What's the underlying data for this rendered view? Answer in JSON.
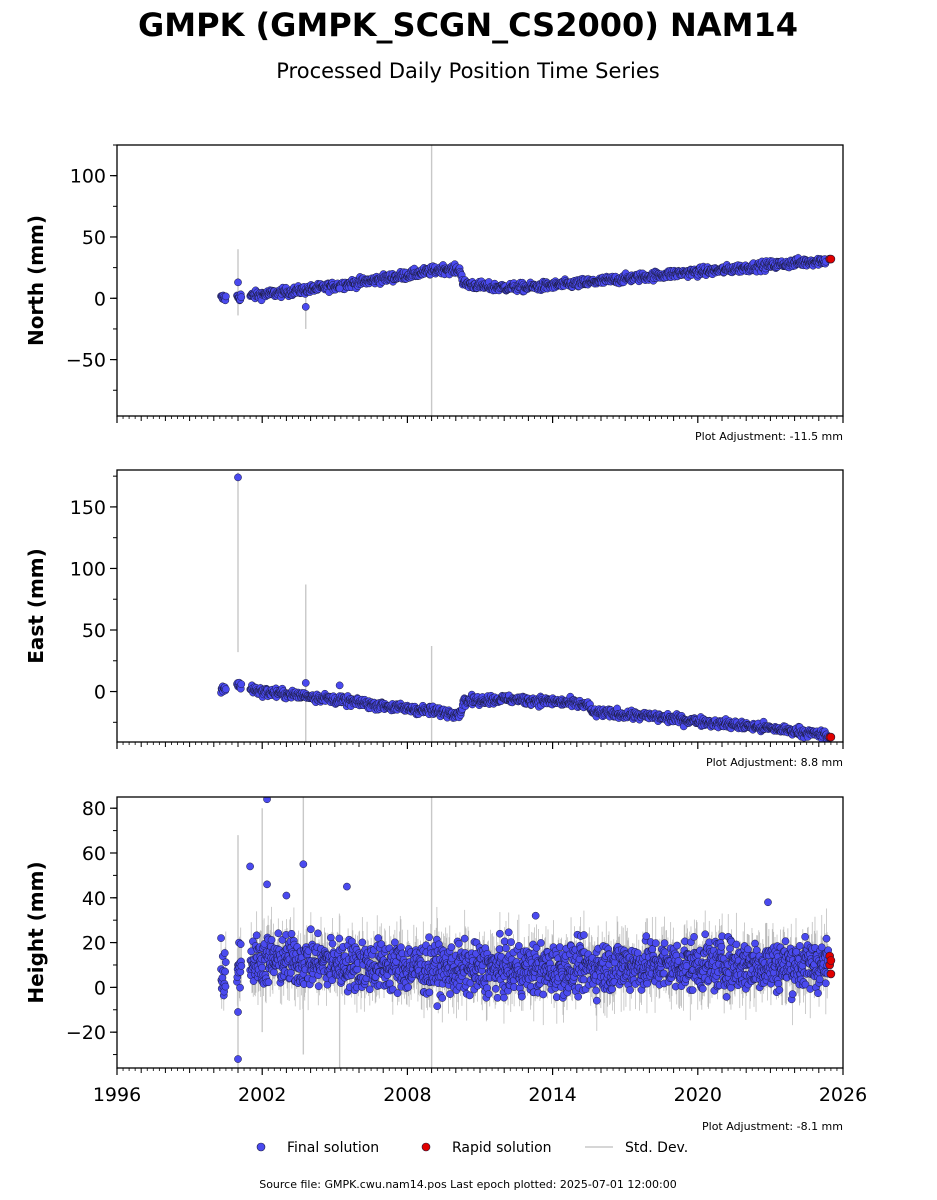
{
  "chart_data": {
    "type": "scatter",
    "title": "GMPK (GMPK_SCGN_CS2000) NAM14",
    "subtitle": "Processed Daily Position Time Series",
    "xlim": [
      1996,
      2026
    ],
    "xticks": [
      "1996",
      "2002",
      "2008",
      "2014",
      "2020",
      "2026"
    ],
    "panels": [
      {
        "ylabel": "North (mm)",
        "ylim": [
          -96,
          125
        ],
        "yticks": [
          "100",
          "50",
          "0",
          "−50"
        ],
        "ytick_values": [
          100,
          50,
          0,
          -50
        ],
        "adjustment": "Plot Adjustment: -11.5 mm",
        "trend": [
          [
            2000.3,
            0
          ],
          [
            2001.0,
            1
          ],
          [
            2003.0,
            5
          ],
          [
            2005.0,
            10
          ],
          [
            2007.0,
            16
          ],
          [
            2008.0,
            19
          ],
          [
            2009.5,
            24
          ],
          [
            2010.2,
            23
          ],
          [
            2010.3,
            12
          ],
          [
            2011.5,
            9
          ],
          [
            2013.0,
            9
          ],
          [
            2015.0,
            12
          ],
          [
            2017.0,
            16
          ],
          [
            2019.0,
            20
          ],
          [
            2021.0,
            23
          ],
          [
            2023.0,
            27
          ],
          [
            2025.3,
            31
          ]
        ],
        "noise": 2.5,
        "outliers": [
          [
            2001.0,
            13
          ],
          [
            2003.8,
            -7
          ],
          [
            2005.2,
            8
          ]
        ],
        "stddev_bars": [
          [
            2001.0,
            -14,
            40
          ],
          [
            2003.8,
            -25,
            11
          ],
          [
            2009.0,
            -96,
            125
          ]
        ],
        "rapid": [
          [
            2025.45,
            32
          ],
          [
            2025.5,
            32
          ]
        ]
      },
      {
        "ylabel": "East (mm)",
        "ylim": [
          -41,
          180
        ],
        "yticks": [
          "150",
          "100",
          "50",
          "0"
        ],
        "ytick_values": [
          150,
          100,
          50,
          0
        ],
        "adjustment": "Plot Adjustment: 8.8 mm",
        "trend": [
          [
            2000.3,
            2
          ],
          [
            2001.0,
            5
          ],
          [
            2002.0,
            0
          ],
          [
            2004.0,
            -4
          ],
          [
            2006.0,
            -9
          ],
          [
            2008.0,
            -14
          ],
          [
            2010.2,
            -18
          ],
          [
            2010.3,
            -8
          ],
          [
            2012.0,
            -6
          ],
          [
            2014.0,
            -8
          ],
          [
            2015.5,
            -11
          ],
          [
            2015.6,
            -17
          ],
          [
            2018.0,
            -20
          ],
          [
            2020.0,
            -24
          ],
          [
            2022.0,
            -28
          ],
          [
            2024.0,
            -32
          ],
          [
            2025.4,
            -36
          ]
        ],
        "noise": 2.5,
        "outliers": [
          [
            2001.0,
            174
          ],
          [
            2003.8,
            7
          ],
          [
            2005.2,
            5
          ]
        ],
        "stddev_bars": [
          [
            2001.0,
            32,
            178
          ],
          [
            2003.8,
            -41,
            87
          ],
          [
            2009.0,
            -41,
            37
          ]
        ],
        "rapid": [
          [
            2025.45,
            -37
          ],
          [
            2025.5,
            -37
          ]
        ]
      },
      {
        "ylabel": "Height (mm)",
        "ylim": [
          -36,
          85
        ],
        "yticks": [
          "80",
          "60",
          "40",
          "20",
          "0",
          "−20"
        ],
        "ytick_values": [
          80,
          60,
          40,
          20,
          0,
          -20
        ],
        "adjustment": "Plot Adjustment: -8.1 mm",
        "trend": [
          [
            2000.3,
            4
          ],
          [
            2001.0,
            12
          ],
          [
            2003.0,
            12
          ],
          [
            2006.0,
            10
          ],
          [
            2010.0,
            8
          ],
          [
            2014.0,
            8
          ],
          [
            2018.0,
            10
          ],
          [
            2022.0,
            10
          ],
          [
            2025.4,
            10
          ]
        ],
        "noise": 8,
        "outliers": [
          [
            2001.0,
            -32
          ],
          [
            2001.0,
            -11
          ],
          [
            2001.5,
            54
          ],
          [
            2002.2,
            84
          ],
          [
            2002.2,
            46
          ],
          [
            2003.7,
            55
          ],
          [
            2003.0,
            41
          ],
          [
            2005.5,
            45
          ],
          [
            2013.3,
            32
          ],
          [
            2022.9,
            38
          ],
          [
            2000.3,
            22
          ]
        ],
        "stddev_bars": [
          [
            2002.0,
            -20,
            80
          ],
          [
            2003.7,
            -30,
            85
          ],
          [
            2005.2,
            -36,
            32
          ],
          [
            2009.0,
            -36,
            85
          ],
          [
            2001.0,
            -36,
            68
          ]
        ],
        "rapid": [
          [
            2025.45,
            14
          ],
          [
            2025.45,
            10
          ],
          [
            2025.5,
            6
          ],
          [
            2025.5,
            12
          ]
        ]
      }
    ],
    "legend": [
      "Final solution",
      "Rapid solution",
      "Std. Dev."
    ],
    "legend_placement": "bottom-center",
    "colors": {
      "final": "#4a4aef",
      "rapid": "#e00000",
      "stddev": "#c8c8c8",
      "edge": "#1a1a3a"
    },
    "footer": "Source file: GMPK.cwu.nam14.pos  Last epoch plotted: 2025-07-01 12:00:00"
  }
}
